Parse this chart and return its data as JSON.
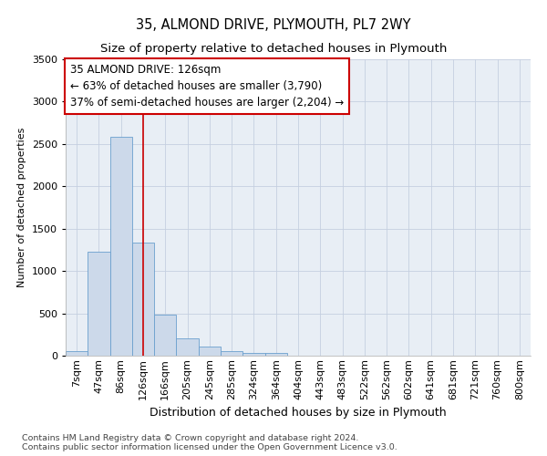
{
  "title": "35, ALMOND DRIVE, PLYMOUTH, PL7 2WY",
  "subtitle": "Size of property relative to detached houses in Plymouth",
  "xlabel": "Distribution of detached houses by size in Plymouth",
  "ylabel": "Number of detached properties",
  "categories": [
    "7sqm",
    "47sqm",
    "86sqm",
    "126sqm",
    "166sqm",
    "205sqm",
    "245sqm",
    "285sqm",
    "324sqm",
    "364sqm",
    "404sqm",
    "443sqm",
    "483sqm",
    "522sqm",
    "562sqm",
    "602sqm",
    "641sqm",
    "681sqm",
    "721sqm",
    "760sqm",
    "800sqm"
  ],
  "values": [
    50,
    1230,
    2580,
    1340,
    490,
    200,
    110,
    50,
    30,
    35,
    0,
    0,
    0,
    0,
    0,
    0,
    0,
    0,
    0,
    0,
    0
  ],
  "bar_color": "#ccd9ea",
  "bar_edge_color": "#6a9fce",
  "highlight_index": 3,
  "highlight_color": "#cc0000",
  "property_label": "35 ALMOND DRIVE: 126sqm",
  "annotation_line1": "← 63% of detached houses are smaller (3,790)",
  "annotation_line2": "37% of semi-detached houses are larger (2,204) →",
  "ylim": [
    0,
    3500
  ],
  "yticks": [
    0,
    500,
    1000,
    1500,
    2000,
    2500,
    3000,
    3500
  ],
  "footer_line1": "Contains HM Land Registry data © Crown copyright and database right 2024.",
  "footer_line2": "Contains public sector information licensed under the Open Government Licence v3.0.",
  "plot_bg_color": "#e8eef5",
  "fig_bg_color": "#ffffff",
  "grid_color": "#c5cfe0",
  "title_fontsize": 10.5,
  "subtitle_fontsize": 9.5,
  "tick_fontsize": 8,
  "ylabel_fontsize": 8,
  "xlabel_fontsize": 9,
  "footer_fontsize": 6.8
}
